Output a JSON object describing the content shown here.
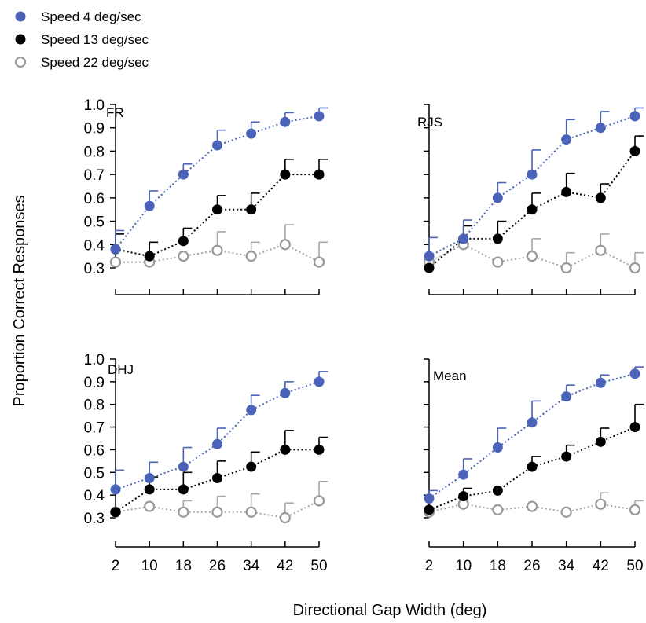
{
  "legend": [
    {
      "label": "Speed 4 deg/sec",
      "color": "#4a63b8",
      "marker": "filled"
    },
    {
      "label": "Speed 13 deg/sec",
      "color": "#000000",
      "marker": "filled"
    },
    {
      "label": "Speed 22 deg/sec",
      "color": "#999999",
      "marker": "open"
    }
  ],
  "ylabel": "Proportion Correct Responses",
  "xlabel": "Directional Gap Width (deg)",
  "chart_data": [
    {
      "type": "line",
      "title": "FR",
      "x": [
        2,
        10,
        18,
        26,
        34,
        42,
        50
      ],
      "ylim": [
        0.3,
        1.0
      ],
      "yticks": [
        "1.0",
        "0.9",
        "0.8",
        "0.7",
        "0.6",
        "0.5",
        "0.4",
        "0.3"
      ],
      "series": [
        {
          "name": "Speed 4 deg/sec",
          "values": [
            0.38,
            0.565,
            0.7,
            0.825,
            0.875,
            0.925,
            0.95
          ],
          "error": [
            0.08,
            0.065,
            0.045,
            0.065,
            0.05,
            0.04,
            0.035
          ]
        },
        {
          "name": "Speed 13 deg/sec",
          "values": [
            0.38,
            0.35,
            0.415,
            0.55,
            0.55,
            0.7,
            0.7
          ],
          "error": [
            0.065,
            0.06,
            0.055,
            0.06,
            0.07,
            0.065,
            0.065
          ]
        },
        {
          "name": "Speed 22 deg/sec",
          "values": [
            0.325,
            0.325,
            0.35,
            0.375,
            0.35,
            0.4,
            0.325
          ],
          "error": [
            0.0,
            0.0,
            0.0,
            0.08,
            0.06,
            0.085,
            0.085
          ]
        }
      ]
    },
    {
      "type": "line",
      "title": "RJS",
      "x": [
        2,
        10,
        18,
        26,
        34,
        42,
        50
      ],
      "ylim": [
        0.3,
        1.0
      ],
      "yticks": [],
      "series": [
        {
          "name": "Speed 4 deg/sec",
          "values": [
            0.35,
            0.425,
            0.6,
            0.7,
            0.85,
            0.9,
            0.95
          ],
          "error": [
            0.08,
            0.08,
            0.065,
            0.105,
            0.085,
            0.07,
            0.035
          ]
        },
        {
          "name": "Speed 13 deg/sec",
          "values": [
            0.3,
            0.425,
            0.425,
            0.55,
            0.625,
            0.6,
            0.8
          ],
          "error": [
            0.0,
            0.055,
            0.075,
            0.07,
            0.08,
            0.06,
            0.065
          ]
        },
        {
          "name": "Speed 22 deg/sec",
          "values": [
            0.325,
            0.4,
            0.325,
            0.35,
            0.3,
            0.375,
            0.3
          ],
          "error": [
            0.0,
            0.0,
            0.0,
            0.075,
            0.065,
            0.07,
            0.065
          ]
        }
      ]
    },
    {
      "type": "line",
      "title": "DHJ",
      "x": [
        2,
        10,
        18,
        26,
        34,
        42,
        50
      ],
      "ylim": [
        0.3,
        1.0
      ],
      "yticks": [
        "1.0",
        "0.9",
        "0.8",
        "0.7",
        "0.6",
        "0.5",
        "0.4",
        "0.3"
      ],
      "xticks": [
        "2",
        "10",
        "18",
        "26",
        "34",
        "42",
        "50"
      ],
      "series": [
        {
          "name": "Speed 4 deg/sec",
          "values": [
            0.425,
            0.475,
            0.525,
            0.625,
            0.775,
            0.85,
            0.9
          ],
          "error": [
            0.085,
            0.07,
            0.085,
            0.07,
            0.065,
            0.05,
            0.045
          ]
        },
        {
          "name": "Speed 13 deg/sec",
          "values": [
            0.325,
            0.425,
            0.425,
            0.475,
            0.525,
            0.6,
            0.6
          ],
          "error": [
            0.0,
            0.055,
            0.075,
            0.075,
            0.065,
            0.085,
            0.055
          ]
        },
        {
          "name": "Speed 22 deg/sec",
          "values": [
            0.325,
            0.35,
            0.325,
            0.325,
            0.325,
            0.3,
            0.375
          ],
          "error": [
            0.0,
            0.0,
            0.05,
            0.07,
            0.08,
            0.065,
            0.085
          ]
        }
      ]
    },
    {
      "type": "line",
      "title": "Mean",
      "x": [
        2,
        10,
        18,
        26,
        34,
        42,
        50
      ],
      "ylim": [
        0.3,
        1.0
      ],
      "yticks": [],
      "xticks": [
        "2",
        "10",
        "18",
        "26",
        "34",
        "42",
        "50"
      ],
      "series": [
        {
          "name": "Speed 4 deg/sec",
          "values": [
            0.385,
            0.49,
            0.61,
            0.72,
            0.835,
            0.895,
            0.935
          ],
          "error": [
            0.035,
            0.07,
            0.085,
            0.095,
            0.05,
            0.035,
            0.03
          ]
        },
        {
          "name": "Speed 13 deg/sec",
          "values": [
            0.335,
            0.395,
            0.42,
            0.525,
            0.57,
            0.635,
            0.7
          ],
          "error": [
            0.0,
            0.035,
            0.0,
            0.045,
            0.05,
            0.06,
            0.1
          ]
        },
        {
          "name": "Speed 22 deg/sec",
          "values": [
            0.325,
            0.36,
            0.335,
            0.35,
            0.325,
            0.36,
            0.335
          ],
          "error": [
            0.0,
            0.0,
            0.0,
            0.0,
            0.0,
            0.05,
            0.04
          ]
        }
      ]
    }
  ]
}
